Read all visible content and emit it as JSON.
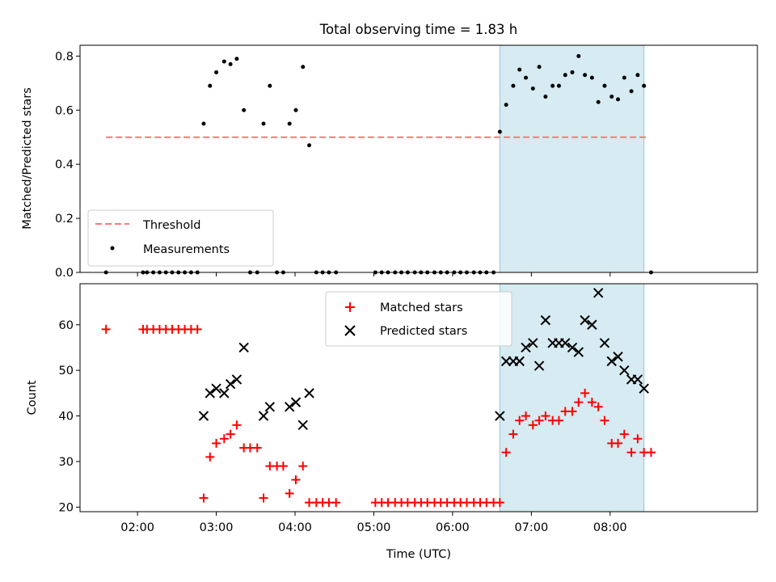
{
  "title": "Total observing time = 1.83 h",
  "colors": {
    "threshold": "#ff7777",
    "measurement": "#000000",
    "matched": "#ff0000",
    "predicted": "#000000",
    "highlight_fill": "#add8e6"
  },
  "chart_data": [
    {
      "type": "scatter",
      "ylabel": "Matched/Predicted stars",
      "xlim_hours": [
        1.27,
        9.87
      ],
      "ylim": [
        0,
        0.84
      ],
      "yticks": [
        0.0,
        0.2,
        0.4,
        0.6,
        0.8
      ],
      "ytick_labels": [
        "0.0",
        "0.2",
        "0.4",
        "0.6",
        "0.8"
      ],
      "highlight_span_hours": [
        6.6,
        8.43
      ],
      "threshold": {
        "name": "Threshold",
        "value": 0.5,
        "x_range_hours": [
          1.6,
          8.47
        ]
      },
      "legend": {
        "placement": "lower left",
        "entries": [
          "Threshold",
          "Measurements"
        ]
      },
      "series": [
        {
          "name": "Measurements",
          "marker": "dot",
          "x_hours": [
            1.6,
            2.07,
            2.12,
            2.2,
            2.28,
            2.36,
            2.44,
            2.52,
            2.6,
            2.68,
            2.76,
            2.84,
            2.92,
            3.0,
            3.1,
            3.18,
            3.26,
            3.35,
            3.43,
            3.52,
            3.6,
            3.68,
            3.77,
            3.85,
            3.93,
            4.01,
            4.1,
            4.18,
            4.27,
            4.35,
            4.43,
            4.52,
            5.02,
            5.1,
            5.18,
            5.27,
            5.35,
            5.43,
            5.52,
            5.6,
            5.68,
            5.77,
            5.85,
            5.93,
            6.02,
            6.1,
            6.18,
            6.27,
            6.35,
            6.43,
            6.52,
            6.6,
            6.68,
            6.77,
            6.85,
            6.93,
            7.02,
            7.1,
            7.18,
            7.27,
            7.35,
            7.43,
            7.52,
            7.6,
            7.68,
            7.77,
            7.85,
            7.93,
            8.02,
            8.1,
            8.18,
            8.27,
            8.35,
            8.43,
            8.52
          ],
          "values": [
            0.0,
            0.0,
            0.0,
            0.0,
            0.0,
            0.0,
            0.0,
            0.0,
            0.0,
            0.0,
            0.0,
            0.55,
            0.69,
            0.74,
            0.78,
            0.77,
            0.79,
            0.6,
            0.0,
            0.0,
            0.55,
            0.69,
            0.0,
            0.0,
            0.55,
            0.6,
            0.76,
            0.47,
            0.0,
            0.0,
            0.0,
            0.0,
            0.0,
            0.0,
            0.0,
            0.0,
            0.0,
            0.0,
            0.0,
            0.0,
            0.0,
            0.0,
            0.0,
            0.0,
            0.0,
            0.0,
            0.0,
            0.0,
            0.0,
            0.0,
            0.0,
            0.52,
            0.62,
            0.69,
            0.75,
            0.72,
            0.68,
            0.76,
            0.65,
            0.69,
            0.69,
            0.73,
            0.74,
            0.8,
            0.73,
            0.72,
            0.63,
            0.69,
            0.65,
            0.64,
            0.72,
            0.67,
            0.73,
            0.69,
            0.0
          ]
        }
      ]
    },
    {
      "type": "scatter",
      "xlabel": "Time (UTC)",
      "ylabel": "Count",
      "xlim_hours": [
        1.27,
        9.87
      ],
      "ylim": [
        19,
        69
      ],
      "yticks": [
        20,
        30,
        40,
        50,
        60
      ],
      "ytick_labels": [
        "20",
        "30",
        "40",
        "50",
        "60"
      ],
      "xticks_hours": [
        2,
        3,
        4,
        5,
        6,
        7,
        8
      ],
      "xtick_labels": [
        "02:00",
        "03:00",
        "04:00",
        "05:00",
        "06:00",
        "07:00",
        "08:00"
      ],
      "highlight_span_hours": [
        6.6,
        8.43
      ],
      "legend": {
        "placement": "upper center",
        "entries": [
          "Matched stars",
          "Predicted stars"
        ]
      },
      "series": [
        {
          "name": "Matched stars",
          "marker": "plus",
          "x_hours": [
            1.6,
            2.07,
            2.12,
            2.2,
            2.28,
            2.36,
            2.44,
            2.52,
            2.6,
            2.68,
            2.76,
            2.84,
            2.92,
            3.0,
            3.1,
            3.18,
            3.26,
            3.35,
            3.43,
            3.52,
            3.6,
            3.68,
            3.77,
            3.85,
            3.93,
            4.01,
            4.1,
            4.18,
            4.27,
            4.35,
            4.43,
            4.52,
            5.02,
            5.1,
            5.18,
            5.27,
            5.35,
            5.43,
            5.52,
            5.6,
            5.68,
            5.77,
            5.85,
            5.93,
            6.02,
            6.1,
            6.18,
            6.27,
            6.35,
            6.43,
            6.52,
            6.6,
            6.68,
            6.77,
            6.85,
            6.93,
            7.02,
            7.1,
            7.18,
            7.27,
            7.35,
            7.43,
            7.52,
            7.6,
            7.68,
            7.77,
            7.85,
            7.93,
            8.02,
            8.1,
            8.18,
            8.27,
            8.35,
            8.43,
            8.52
          ],
          "values": [
            59,
            59,
            59,
            59,
            59,
            59,
            59,
            59,
            59,
            59,
            59,
            22,
            31,
            34,
            35,
            36,
            38,
            33,
            33,
            33,
            22,
            29,
            29,
            29,
            23,
            26,
            29,
            21,
            21,
            21,
            21,
            21,
            21,
            21,
            21,
            21,
            21,
            21,
            21,
            21,
            21,
            21,
            21,
            21,
            21,
            21,
            21,
            21,
            21,
            21,
            21,
            21,
            32,
            36,
            39,
            40,
            38,
            39,
            40,
            39,
            39,
            41,
            41,
            43,
            45,
            43,
            42,
            39,
            34,
            34,
            36,
            32,
            35,
            32,
            32
          ]
        },
        {
          "name": "Predicted stars",
          "marker": "x",
          "x_hours": [
            2.84,
            2.92,
            3.0,
            3.1,
            3.18,
            3.26,
            3.35,
            3.6,
            3.68,
            3.93,
            4.01,
            4.1,
            4.18,
            6.6,
            6.68,
            6.77,
            6.85,
            6.93,
            7.02,
            7.1,
            7.18,
            7.27,
            7.35,
            7.43,
            7.52,
            7.6,
            7.68,
            7.77,
            7.85,
            7.93,
            8.02,
            8.1,
            8.18,
            8.27,
            8.35,
            8.43
          ],
          "values": [
            40,
            45,
            46,
            45,
            47,
            48,
            55,
            40,
            42,
            42,
            43,
            38,
            45,
            40,
            52,
            52,
            52,
            55,
            56,
            51,
            61,
            56,
            56,
            56,
            55,
            54,
            61,
            60,
            67,
            56,
            52,
            53,
            50,
            48,
            48,
            46
          ]
        }
      ]
    }
  ]
}
